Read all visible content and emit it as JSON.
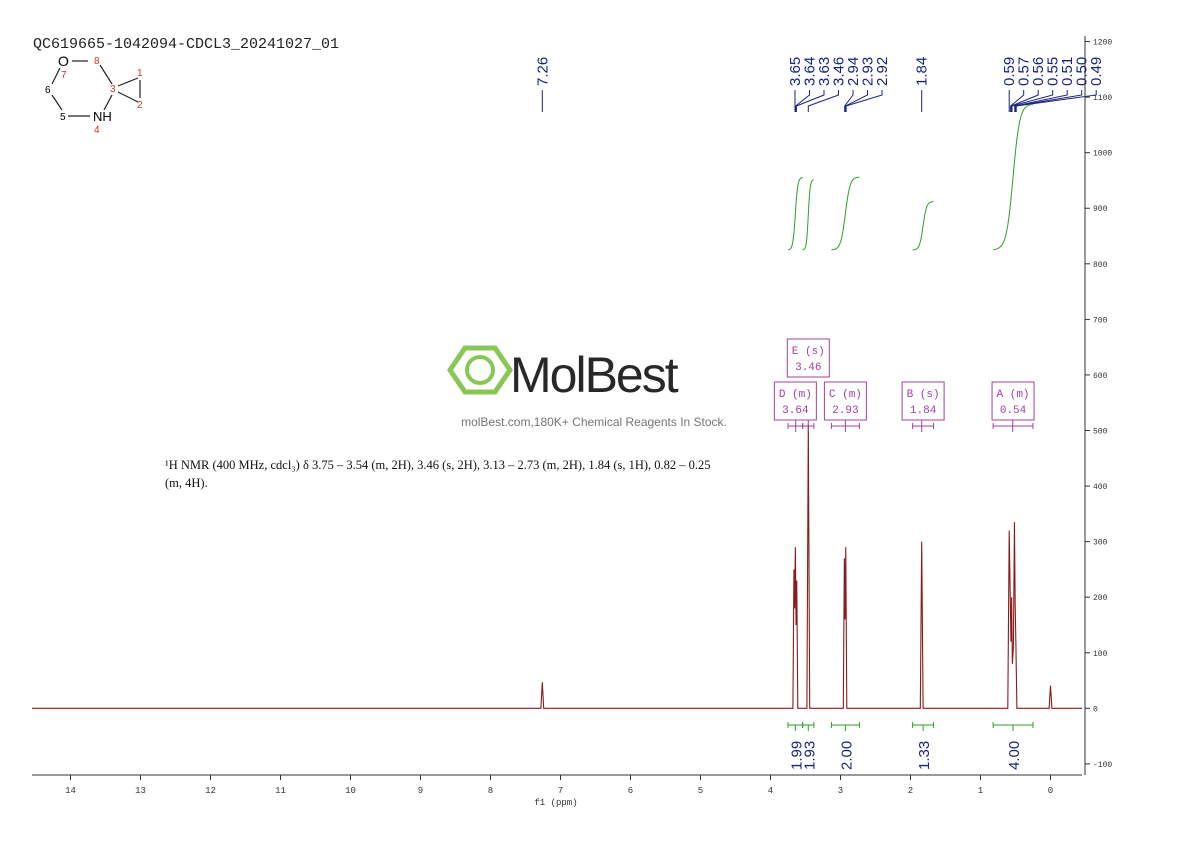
{
  "chart_data": {
    "type": "spectrum",
    "title": "QC619665-1042094-CDCL3_20241027_01",
    "x_label": "f1 (ppm)",
    "description": "¹H NMR (400 MHz, cdcl₃) δ 3.75 – 3.54 (m, 2H), 3.46 (s, 2H), 3.13 – 2.73 (m, 2H), 1.84 (s, 1H), 0.82 – 0.25 (m, 4H).",
    "x": [
      14.55,
      7.28,
      7.26,
      7.24,
      3.68,
      3.665,
      3.655,
      3.645,
      3.635,
      3.625,
      3.61,
      3.48,
      3.46,
      3.44,
      2.96,
      2.945,
      2.935,
      2.925,
      2.91,
      1.86,
      1.84,
      1.82,
      0.61,
      0.59,
      0.575,
      0.565,
      0.555,
      0.545,
      0.53,
      0.515,
      0.505,
      0.495,
      0.48,
      0.02,
      0,
      -0.02,
      -0.45
    ],
    "values": [
      0,
      0,
      47,
      0,
      0,
      250,
      180,
      290,
      150,
      230,
      0,
      0,
      511,
      0,
      0,
      270,
      160,
      290,
      0,
      0,
      300,
      0,
      0,
      320,
      200,
      120,
      200,
      80,
      110,
      335,
      190,
      120,
      0,
      0,
      41,
      0,
      0
    ],
    "color": "#8b1a1a",
    "xlim": [
      14.55,
      -0.45
    ],
    "xticks": [
      14,
      13,
      12,
      11,
      10,
      9,
      8,
      7,
      6,
      5,
      4,
      3,
      2,
      1,
      0
    ],
    "ylim": [
      -120,
      1210
    ],
    "yticks": [
      -100,
      0,
      100,
      200,
      300,
      400,
      500,
      600,
      700,
      800,
      900,
      1000,
      1100,
      1200
    ],
    "peak_labels": [
      7.26,
      3.65,
      3.64,
      3.63,
      3.46,
      2.94,
      2.93,
      2.92,
      1.84,
      0.59,
      0.57,
      0.56,
      0.55,
      0.51,
      {
        "value": 0.5,
        "label": "0.50"
      },
      0.49
    ],
    "peak_label_color": "#1a237e",
    "integrals": [
      {
        "from": 3.75,
        "to": 3.54,
        "value": 1.99
      },
      {
        "from": 3.54,
        "to": 3.38,
        "value": 1.93
      },
      {
        "from": 3.13,
        "to": 2.73,
        "value": {
          "value": 2,
          "label": "2.00"
        }
      },
      {
        "from": 1.97,
        "to": 1.67,
        "value": 1.33
      },
      {
        "from": 0.82,
        "to": 0.25,
        "value": {
          "value": 4,
          "label": "4.00"
        }
      }
    ],
    "integral_color": "#2e9e2e",
    "multiplets": [
      {
        "label": "A (m)",
        "shift": 0.54,
        "from": 0.82,
        "to": 0.25
      },
      {
        "label": "B (s)",
        "shift": 1.84,
        "from": 1.97,
        "to": 1.67
      },
      {
        "label": "C (m)",
        "shift": 2.93,
        "from": 3.13,
        "to": 2.73
      },
      {
        "label": "D (m)",
        "shift": 3.64,
        "from": 3.75,
        "to": 3.54
      },
      {
        "label": "E (s)",
        "shift": 3.46,
        "from": 3.54,
        "to": 3.38
      }
    ],
    "multiplet_color": "#a040a0"
  },
  "watermark": {
    "brand": "MolBest",
    "tagline": "molBest.com,180K+ Chemical Reagents In Stock."
  },
  "structure": {
    "atoms": [
      "O",
      "NH"
    ],
    "numbers": [
      1,
      2,
      3,
      4,
      5,
      6,
      7,
      8
    ]
  }
}
